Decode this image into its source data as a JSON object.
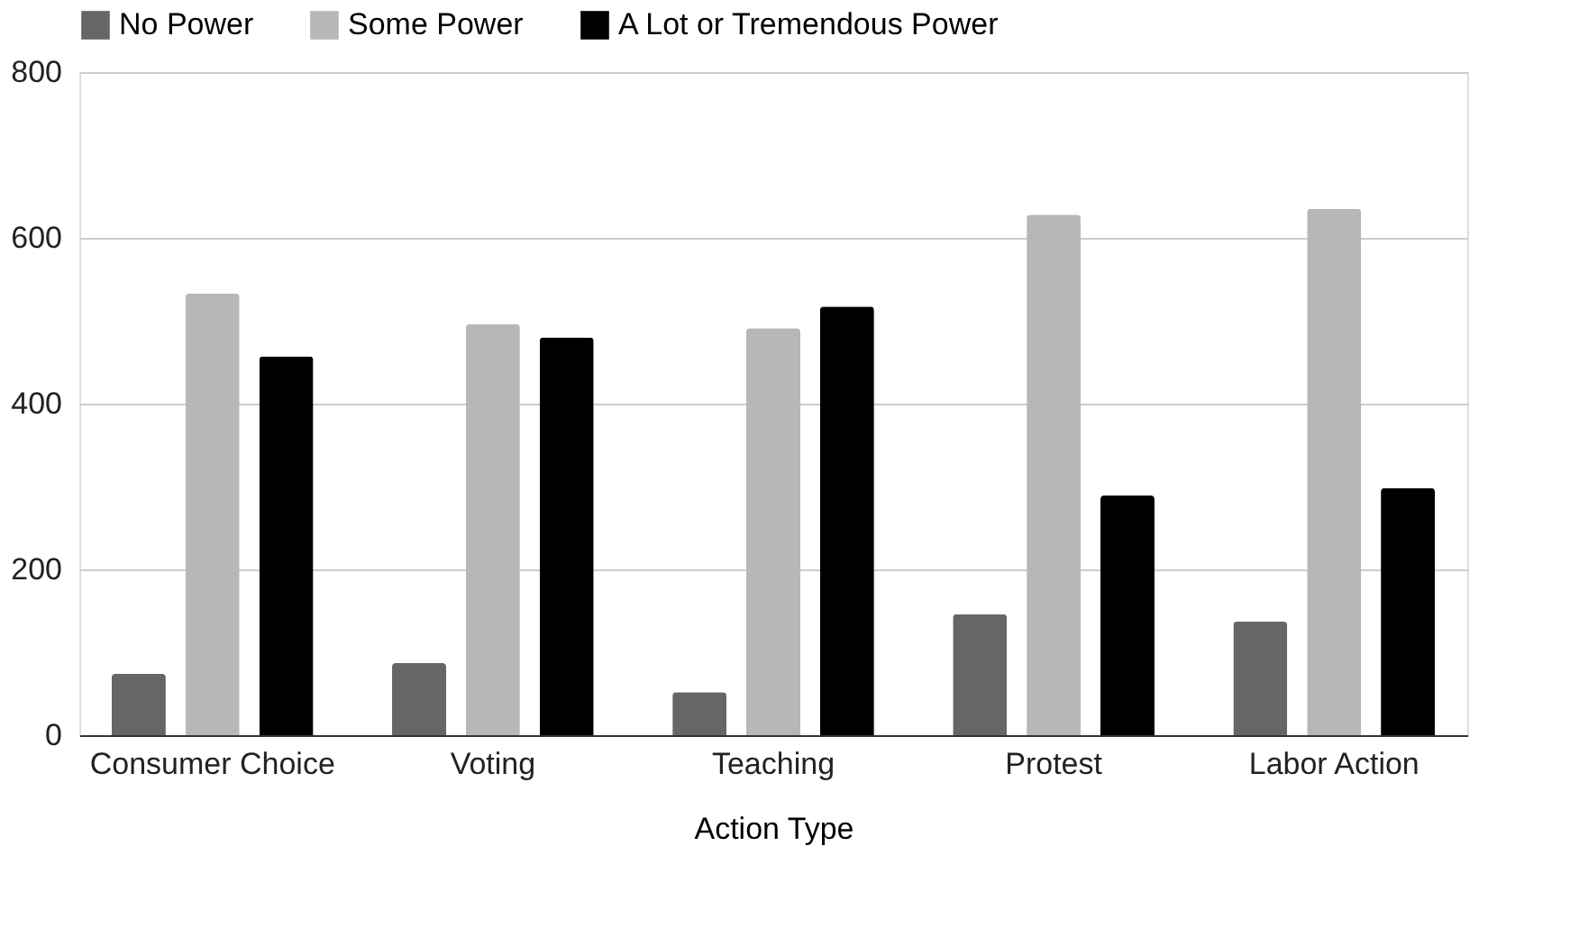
{
  "chart_data": {
    "type": "bar",
    "xlabel": "Action Type",
    "categories": [
      "Consumer Choice",
      "Voting",
      "Teaching",
      "Protest",
      "Labor Action"
    ],
    "series": [
      {
        "name": "No Power",
        "color": "#666666",
        "values": [
          74,
          87,
          52,
          146,
          137
        ]
      },
      {
        "name": "Some Power",
        "color": "#b7b7b7",
        "values": [
          533,
          496,
          491,
          628,
          635
        ]
      },
      {
        "name": "A Lot or Tremendous Power",
        "color": "#000000",
        "values": [
          457,
          480,
          517,
          289,
          298
        ]
      }
    ],
    "ylim": [
      0,
      800
    ],
    "yticks": [
      0,
      200,
      400,
      600,
      800
    ],
    "grid": "y",
    "legend": "top"
  }
}
